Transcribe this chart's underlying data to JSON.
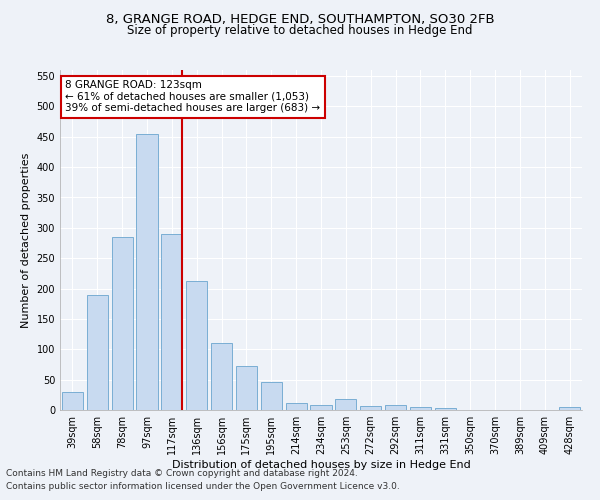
{
  "title_line1": "8, GRANGE ROAD, HEDGE END, SOUTHAMPTON, SO30 2FB",
  "title_line2": "Size of property relative to detached houses in Hedge End",
  "xlabel": "Distribution of detached houses by size in Hedge End",
  "ylabel": "Number of detached properties",
  "categories": [
    "39sqm",
    "58sqm",
    "78sqm",
    "97sqm",
    "117sqm",
    "136sqm",
    "156sqm",
    "175sqm",
    "195sqm",
    "214sqm",
    "234sqm",
    "253sqm",
    "272sqm",
    "292sqm",
    "311sqm",
    "331sqm",
    "350sqm",
    "370sqm",
    "389sqm",
    "409sqm",
    "428sqm"
  ],
  "values": [
    30,
    190,
    285,
    455,
    290,
    213,
    110,
    73,
    46,
    12,
    8,
    18,
    7,
    8,
    5,
    4,
    0,
    0,
    0,
    0,
    5
  ],
  "bar_color": "#c8daf0",
  "bar_edge_color": "#7aaed4",
  "vline_x_idx": 4,
  "vline_color": "#cc0000",
  "annotation_line1": "8 GRANGE ROAD: 123sqm",
  "annotation_line2": "← 61% of detached houses are smaller (1,053)",
  "annotation_line3": "39% of semi-detached houses are larger (683) →",
  "annotation_box_color": "#ffffff",
  "annotation_box_edge": "#cc0000",
  "ylim": [
    0,
    560
  ],
  "yticks": [
    0,
    50,
    100,
    150,
    200,
    250,
    300,
    350,
    400,
    450,
    500,
    550
  ],
  "footer_line1": "Contains HM Land Registry data © Crown copyright and database right 2024.",
  "footer_line2": "Contains public sector information licensed under the Open Government Licence v3.0.",
  "title_fontsize": 9.5,
  "subtitle_fontsize": 8.5,
  "axis_label_fontsize": 8,
  "tick_fontsize": 7,
  "annotation_fontsize": 7.5,
  "footer_fontsize": 6.5,
  "background_color": "#eef2f8",
  "plot_background": "#eef2f8",
  "grid_color": "#ffffff"
}
